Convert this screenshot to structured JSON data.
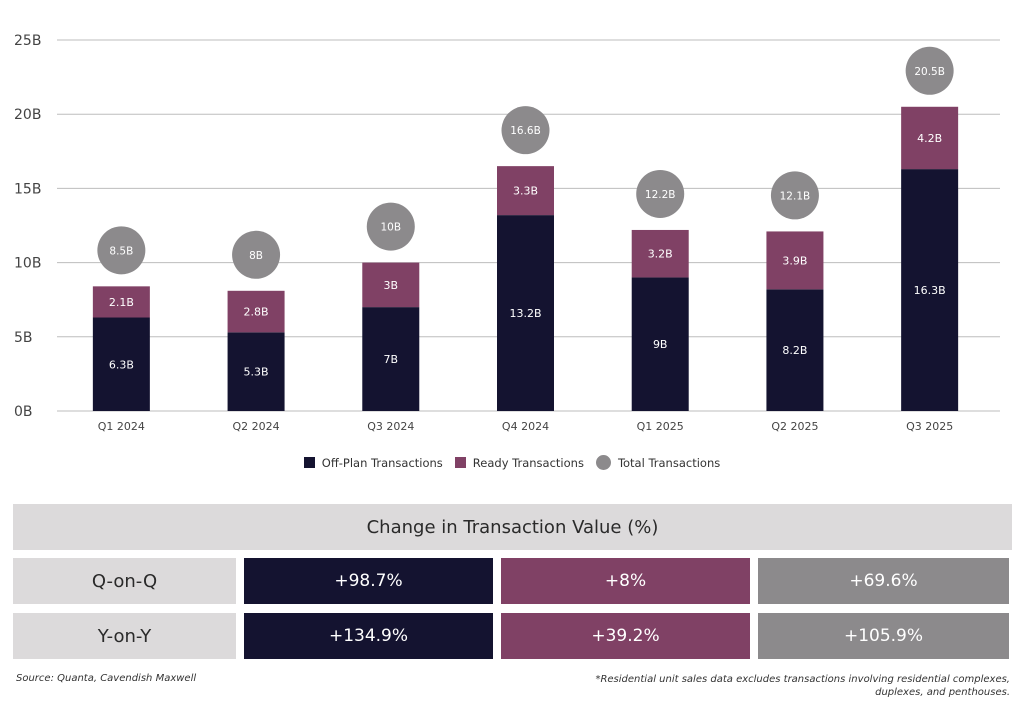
{
  "colors": {
    "off_plan": "#141330",
    "ready": "#804165",
    "total": "#8c8a8c",
    "grid": "#bdbdbd",
    "table_label_bg": "#dcdadb"
  },
  "chart_data": {
    "type": "bar",
    "stacked": true,
    "title": "",
    "xlabel": "",
    "ylabel": "",
    "ylim": [
      0,
      25
    ],
    "yticks": [
      0,
      5,
      10,
      15,
      20,
      25
    ],
    "ytick_labels": [
      "0B",
      "5B",
      "10B",
      "15B",
      "20B",
      "25B"
    ],
    "grid": true,
    "legend_position": "bottom",
    "categories": [
      "Q1 2024",
      "Q2 2024",
      "Q3 2024",
      "Q4 2024",
      "Q1 2025",
      "Q2 2025",
      "Q3 2025"
    ],
    "series": [
      {
        "name": "Off-Plan Transactions",
        "kind": "bar",
        "values": [
          6.3,
          5.3,
          7,
          13.2,
          9,
          8.2,
          16.3
        ],
        "labels": [
          "6.3B",
          "5.3B",
          "7B",
          "13.2B",
          "9B",
          "8.2B",
          "16.3B"
        ]
      },
      {
        "name": "Ready Transactions",
        "kind": "bar",
        "values": [
          2.1,
          2.8,
          3,
          3.3,
          3.2,
          3.9,
          4.2
        ],
        "labels": [
          "2.1B",
          "2.8B",
          "3B",
          "3.3B",
          "3.2B",
          "3.9B",
          "4.2B"
        ]
      },
      {
        "name": "Total Transactions",
        "kind": "marker",
        "values": [
          8.5,
          8,
          10,
          16.6,
          12.2,
          12.1,
          20.5
        ],
        "labels": [
          "8.5B",
          "8B",
          "10B",
          "16.6B",
          "12.2B",
          "12.1B",
          "20.5B"
        ]
      }
    ]
  },
  "legend": [
    {
      "label": "Off-Plan Transactions",
      "shape": "square"
    },
    {
      "label": "Ready Transactions",
      "shape": "square"
    },
    {
      "label": "Total Transactions",
      "shape": "circle"
    }
  ],
  "table": {
    "title": "Change in Transaction Value (%)",
    "rows": [
      {
        "label": "Q-on-Q",
        "off_plan": "+98.7%",
        "ready": "+8%",
        "total": "+69.6%"
      },
      {
        "label": "Y-on-Y",
        "off_plan": "+134.9%",
        "ready": "+39.2%",
        "total": "+105.9%"
      }
    ]
  },
  "footer": {
    "source": "Source: Quanta, Cavendish Maxwell",
    "note": "*Residential unit sales data excludes transactions involving residential complexes, duplexes, and penthouses."
  }
}
